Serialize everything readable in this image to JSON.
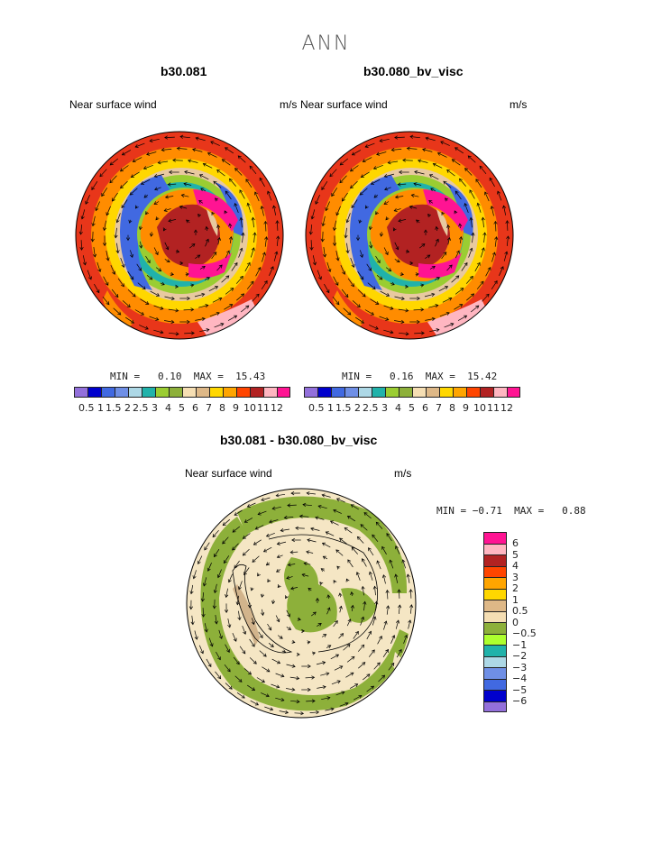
{
  "title": "ANN",
  "panels": [
    {
      "case": "b30.081",
      "variable": "Near surface wind",
      "units": "m/s",
      "min_label": "MIN =",
      "min": "0.10",
      "max_label": "MAX =",
      "max": "15.43"
    },
    {
      "case": "b30.080_bv_visc",
      "variable": "Near surface wind",
      "units": "m/s",
      "min_label": "MIN =",
      "min": "0.16",
      "max_label": "MAX =",
      "max": "15.42"
    }
  ],
  "diff": {
    "title": "b30.081 - b30.080_bv_visc",
    "variable": "Near surface wind",
    "units": "m/s",
    "min_label": "MIN =",
    "min": "−0.71",
    "max_label": "MAX =",
    "max": "0.88"
  },
  "field_colorbar": {
    "colors": [
      "#9370db",
      "#0000cd",
      "#4169e1",
      "#6f8fe6",
      "#add8e6",
      "#20b2aa",
      "#9acd32",
      "#8db03a",
      "#f5deb3",
      "#deb887",
      "#ffd700",
      "#ffa500",
      "#ff4500",
      "#b22222",
      "#ffb6c1",
      "#ff1493"
    ],
    "labels": [
      "0.5",
      "1",
      "1.5",
      "2",
      "2.5",
      "3",
      "4",
      "5",
      "6",
      "7",
      "8",
      "9",
      "10",
      "11",
      "12"
    ]
  },
  "diff_colorbar": {
    "colors": [
      "#ff1493",
      "#ffb6c1",
      "#b22222",
      "#ff4500",
      "#ffa500",
      "#ffd700",
      "#deb887",
      "#f5deb3",
      "#8db03a",
      "#adff2f",
      "#20b2aa",
      "#add8e6",
      "#6f8fe6",
      "#4169e1",
      "#0000cd",
      "#9370db"
    ],
    "labels": [
      "6",
      "5",
      "4",
      "3",
      "2",
      "1",
      "0.5",
      "0",
      "−0.5",
      "−1",
      "−2",
      "−3",
      "−4",
      "−5",
      "−6"
    ]
  },
  "map_colors": {
    "outer": "#e8361a",
    "orange": "#ff8c00",
    "yellow": "#ffd700",
    "tan": "#e8c9a0",
    "wheat": "#f5deb3",
    "green": "#9acd32",
    "cyan": "#20b2aa",
    "blue": "#4169e1",
    "darkred": "#b22222",
    "pink": "#ff1493",
    "diff_green": "#8db03a",
    "diff_wheat": "#f5e6c4",
    "diff_tan": "#d2b48c"
  }
}
